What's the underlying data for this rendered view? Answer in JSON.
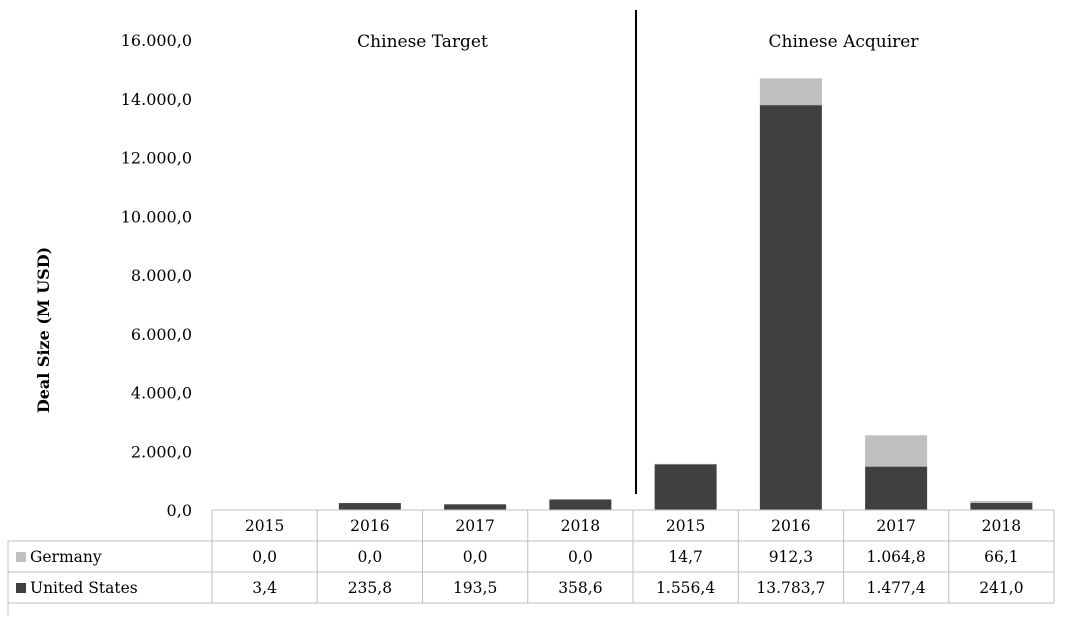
{
  "chart_data": {
    "type": "bar",
    "stacked": true,
    "ylabel": "Deal Size (M USD)",
    "ylim": [
      0,
      16000
    ],
    "yticks": [
      "0,0",
      "2.000,0",
      "4.000,0",
      "6.000,0",
      "8.000,0",
      "10.000,0",
      "12.000,0",
      "14.000,0",
      "16.000,0"
    ],
    "groups": [
      {
        "label": "Chinese Target",
        "categories": [
          "2015",
          "2016",
          "2017",
          "2018"
        ]
      },
      {
        "label": "Chinese Acquirer",
        "categories": [
          "2015",
          "2016",
          "2017",
          "2018"
        ]
      }
    ],
    "categories": [
      "2015",
      "2016",
      "2017",
      "2018",
      "2015",
      "2016",
      "2017",
      "2018"
    ],
    "series": [
      {
        "name": "Germany",
        "color": "#bfbfbf",
        "values": [
          0.0,
          0.0,
          0.0,
          0.0,
          14.7,
          912.3,
          1064.8,
          66.1
        ],
        "labels": [
          "0,0",
          "0,0",
          "0,0",
          "0,0",
          "14,7",
          "912,3",
          "1.064,8",
          "66,1"
        ]
      },
      {
        "name": "United States",
        "color": "#404040",
        "values": [
          3.4,
          235.8,
          193.5,
          358.6,
          1556.4,
          13783.7,
          1477.4,
          241.0
        ],
        "labels": [
          "3,4",
          "235,8",
          "193,5",
          "358,6",
          "1.556,4",
          "13.783,7",
          "1.477,4",
          "241,0"
        ]
      }
    ],
    "grid": false,
    "legend": "data-table"
  }
}
